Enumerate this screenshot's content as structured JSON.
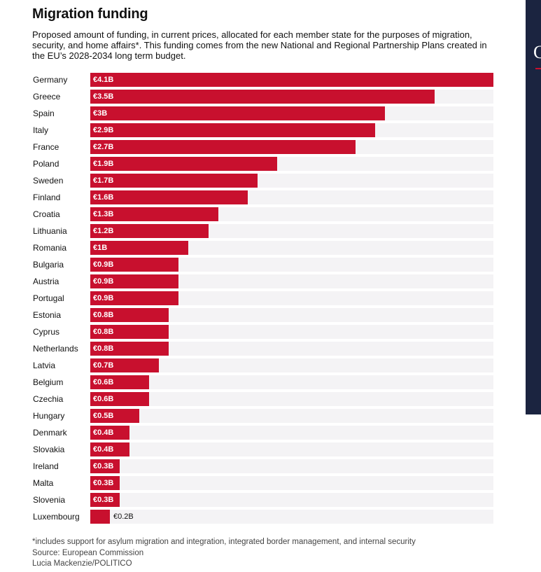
{
  "title": "Migration funding",
  "subtitle": "Proposed amount of funding, in current prices, allocated for each member state for the purposes of migration, security, and home affairs*. This funding comes from the new National and Regional Partnership Plans created in the EU’s 2028-2034 long term budget.",
  "chart_data": {
    "type": "bar",
    "orientation": "horizontal",
    "title": "Migration funding",
    "unit": "€ billion",
    "xlim": [
      0,
      4.1
    ],
    "bar_color": "#c8102e",
    "track_color": "#f4f3f5",
    "categories": [
      "Germany",
      "Greece",
      "Spain",
      "Italy",
      "France",
      "Poland",
      "Sweden",
      "Finland",
      "Croatia",
      "Lithuania",
      "Romania",
      "Bulgaria",
      "Austria",
      "Portugal",
      "Estonia",
      "Cyprus",
      "Netherlands",
      "Latvia",
      "Belgium",
      "Czechia",
      "Hungary",
      "Denmark",
      "Slovakia",
      "Ireland",
      "Malta",
      "Slovenia",
      "Luxembourg"
    ],
    "values": [
      4.1,
      3.5,
      3.0,
      2.9,
      2.7,
      1.9,
      1.7,
      1.6,
      1.3,
      1.2,
      1.0,
      0.9,
      0.9,
      0.9,
      0.8,
      0.8,
      0.8,
      0.7,
      0.6,
      0.6,
      0.5,
      0.4,
      0.4,
      0.3,
      0.3,
      0.3,
      0.2
    ],
    "labels": [
      "€4.1B",
      "€3.5B",
      "€3B",
      "€2.9B",
      "€2.7B",
      "€1.9B",
      "€1.7B",
      "€1.6B",
      "€1.3B",
      "€1.2B",
      "€1B",
      "€0.9B",
      "€0.9B",
      "€0.9B",
      "€0.8B",
      "€0.8B",
      "€0.8B",
      "€0.7B",
      "€0.6B",
      "€0.6B",
      "€0.5B",
      "€0.4B",
      "€0.4B",
      "€0.3B",
      "€0.3B",
      "€0.3B",
      "€0.2B"
    ]
  },
  "footer": {
    "note": "*includes support for asylum migration and integration, integrated border management, and internal security",
    "source": "Source: European Commission",
    "credit": "Lucia Mackenzie/POLITICO"
  },
  "side_panel": {
    "glyph": "C"
  }
}
